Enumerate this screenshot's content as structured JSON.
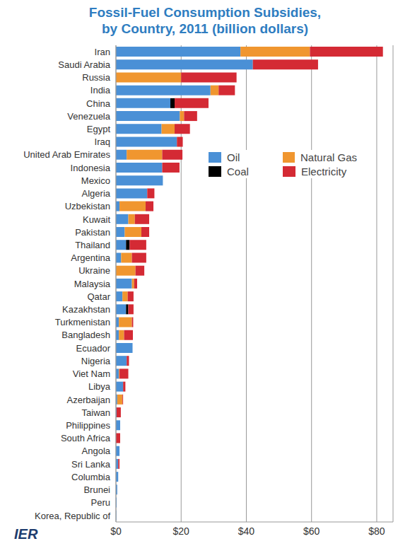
{
  "chart_data": {
    "type": "bar",
    "title": "Fossil-Fuel Consumption Subsidies,",
    "subtitle": "by Country, 2011 (billion dollars)",
    "annotations": [
      "IER"
    ],
    "orientation": "horizontal",
    "stacked": true,
    "grid": true,
    "legend": "upper right",
    "categories": [
      "Iran",
      "Saudi Arabia",
      "Russia",
      "India",
      "China",
      "Venezuela",
      "Egypt",
      "Iraq",
      "United Arab Emirates",
      "Indonesia",
      "Mexico",
      "Algeria",
      "Uzbekistan",
      "Kuwait",
      "Pakistan",
      "Thailand",
      "Argentina",
      "Ukraine",
      "Malaysia",
      "Qatar",
      "Kazakhstan",
      "Turkmenistan",
      "Bangladesh",
      "Ecuador",
      "Nigeria",
      "Viet Nam",
      "Libya",
      "Azerbaijan",
      "Taiwan",
      "Philippines",
      "South Africa",
      "Angola",
      "Sri Lanka",
      "Columbia",
      "Brunei",
      "Peru",
      "Korea, Republic of"
    ],
    "series": [
      {
        "name": "Oil",
        "color": "#4a90d6",
        "values": [
          38.2,
          42,
          0,
          29,
          16.7,
          19.6,
          14,
          18.7,
          3.3,
          14.2,
          14.4,
          9.6,
          1.1,
          3.8,
          2.7,
          3.1,
          1.6,
          0,
          4.9,
          2,
          3.1,
          0.9,
          0.9,
          5.1,
          3.3,
          0.9,
          2.2,
          0.4,
          0.2,
          1.3,
          0,
          1.1,
          0.7,
          0.7,
          0.4,
          0.2,
          0.1
        ]
      },
      {
        "name": "Coal",
        "color": "#000000",
        "values": [
          0,
          0,
          0,
          0,
          1.3,
          0,
          0,
          0,
          0,
          0,
          0,
          0,
          0,
          0,
          0,
          1.1,
          0,
          0,
          0,
          0,
          0.7,
          0,
          0,
          0,
          0,
          0,
          0,
          0,
          0,
          0,
          0,
          0,
          0,
          0,
          0,
          0,
          0
        ]
      },
      {
        "name": "Natural Gas",
        "color": "#f0962f",
        "values": [
          21.3,
          0,
          20,
          2.5,
          0,
          1.3,
          4,
          0,
          10.9,
          0,
          0,
          0,
          8,
          2,
          5.1,
          0,
          3.3,
          6,
          0.7,
          1.6,
          0,
          4,
          1.6,
          0,
          0,
          0.2,
          0,
          1.6,
          0,
          0,
          0,
          0,
          0,
          0,
          0,
          0,
          0
        ]
      },
      {
        "name": "Electricity",
        "color": "#d42a34",
        "values": [
          22.4,
          20,
          17,
          5,
          10.4,
          4,
          4.7,
          1.8,
          6.2,
          5.3,
          0,
          2.2,
          2.4,
          4.4,
          2.4,
          5.1,
          4.4,
          2.7,
          0.9,
          1.8,
          1.6,
          0.4,
          2.7,
          0,
          0.7,
          2.7,
          0.7,
          0.2,
          1.3,
          0,
          1.3,
          0,
          0.4,
          0,
          0,
          0,
          0
        ]
      }
    ],
    "xlim": [
      0,
      85
    ],
    "xticks": [
      {
        "value": 0,
        "label": "$0"
      },
      {
        "value": 20,
        "label": "$20"
      },
      {
        "value": 40,
        "label": "$40"
      },
      {
        "value": 60,
        "label": "$60"
      },
      {
        "value": 80,
        "label": "$80"
      }
    ]
  }
}
